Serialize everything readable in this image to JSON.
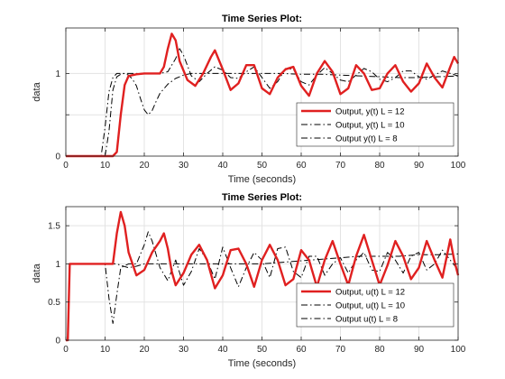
{
  "chart_data": [
    {
      "type": "line",
      "title": "Time Series Plot:",
      "xlabel": "Time (seconds)",
      "ylabel": "data",
      "xlim": [
        0,
        100
      ],
      "ylim": [
        0,
        1.55
      ],
      "xticks": [
        0,
        10,
        20,
        30,
        40,
        50,
        60,
        70,
        80,
        90,
        100
      ],
      "yticks": [
        0,
        0.5,
        1
      ],
      "ytick_labels": [
        "0",
        "",
        "1"
      ],
      "grid": true,
      "legend_position": "bottom-right",
      "series": [
        {
          "name": "Output, y(t) L = 12",
          "color": "#e02020",
          "style": "solid",
          "x": [
            0,
            12,
            13,
            14,
            15,
            16,
            18,
            20,
            24,
            25,
            26,
            27,
            28,
            29,
            31,
            33,
            35,
            37,
            38,
            40,
            42,
            44,
            46,
            48,
            50,
            52,
            54,
            56,
            58,
            60,
            62,
            64,
            66,
            68,
            70,
            72,
            74,
            76,
            78,
            80,
            82,
            84,
            86,
            88,
            90,
            92,
            94,
            96,
            98,
            99,
            100
          ],
          "y": [
            0,
            0,
            0.05,
            0.5,
            0.86,
            0.97,
            0.99,
            1.0,
            1.0,
            1.08,
            1.3,
            1.48,
            1.4,
            1.15,
            0.92,
            0.85,
            1.0,
            1.2,
            1.28,
            1.05,
            0.8,
            0.88,
            1.1,
            1.1,
            0.82,
            0.75,
            0.95,
            1.05,
            1.08,
            0.85,
            0.73,
            1.0,
            1.15,
            1.02,
            0.75,
            0.82,
            1.1,
            1.0,
            0.8,
            0.82,
            1.0,
            1.1,
            0.9,
            0.78,
            0.88,
            1.12,
            0.95,
            0.83,
            1.08,
            1.2,
            1.12
          ]
        },
        {
          "name": "Output, y(t) L = 10",
          "color": "#000000",
          "style": "dashdot",
          "x": [
            0,
            10,
            11,
            12,
            13,
            14,
            15,
            16,
            18,
            20,
            22,
            24,
            26,
            28,
            29,
            30,
            32,
            34,
            36,
            38,
            40,
            42,
            44,
            46,
            48,
            50,
            52,
            54,
            56,
            58,
            60,
            62,
            64,
            66,
            68,
            70,
            72,
            74,
            76,
            78,
            80,
            82,
            84,
            86,
            88,
            90,
            92,
            94,
            96,
            98,
            100
          ],
          "y": [
            0,
            0,
            0.3,
            0.8,
            0.96,
            0.99,
            1.0,
            1.0,
            1.0,
            1.0,
            1.0,
            1.0,
            1.02,
            1.18,
            1.3,
            1.22,
            0.97,
            0.9,
            1.0,
            1.08,
            1.04,
            0.95,
            0.94,
            1.02,
            1.08,
            0.95,
            0.82,
            0.9,
            1.06,
            1.05,
            0.9,
            0.86,
            0.98,
            1.07,
            1.0,
            0.92,
            0.9,
            0.98,
            1.06,
            1.02,
            0.93,
            0.9,
            0.95,
            1.03,
            1.03,
            0.96,
            0.93,
            0.98,
            1.03,
            1.0,
            0.97
          ]
        },
        {
          "name": "Output y(t) L = 8",
          "color": "#000000",
          "style": "dashdot",
          "x": [
            0,
            9,
            10,
            11,
            12,
            13,
            14,
            15,
            16,
            17,
            18,
            19,
            20,
            21,
            22,
            23,
            24,
            26,
            28,
            30,
            32,
            34,
            36,
            40,
            45,
            50,
            55,
            60,
            65,
            70,
            75,
            80,
            85,
            90,
            95,
            100
          ],
          "y": [
            0,
            0,
            0.35,
            0.78,
            0.95,
            1.0,
            1.0,
            1.0,
            0.98,
            0.93,
            0.85,
            0.7,
            0.56,
            0.5,
            0.55,
            0.66,
            0.76,
            0.87,
            0.94,
            0.98,
            1.0,
            1.0,
            1.0,
            1.0,
            1.0,
            1.0,
            1.0,
            0.99,
            0.99,
            0.98,
            0.97,
            0.96,
            0.95,
            0.95,
            0.96,
            0.97
          ]
        }
      ]
    },
    {
      "type": "line",
      "title": "Time Series Plot:",
      "xlabel": "Time (seconds)",
      "ylabel": "data",
      "xlim": [
        0,
        100
      ],
      "ylim": [
        0,
        1.75
      ],
      "xticks": [
        0,
        10,
        20,
        30,
        40,
        50,
        60,
        70,
        80,
        90,
        100
      ],
      "yticks": [
        0,
        0.5,
        1,
        1.5
      ],
      "ytick_labels": [
        "0",
        "0.5",
        "1",
        "1.5"
      ],
      "grid": true,
      "legend_position": "bottom-right",
      "series": [
        {
          "name": "Output, u(t) L = 12",
          "color": "#e02020",
          "style": "solid",
          "x": [
            0,
            0.5,
            1,
            11,
            12,
            13,
            14,
            15,
            16,
            18,
            20,
            22,
            24,
            25,
            26,
            27,
            28,
            30,
            32,
            34,
            36,
            38,
            40,
            42,
            44,
            46,
            48,
            50,
            52,
            54,
            56,
            58,
            60,
            62,
            64,
            66,
            68,
            70,
            72,
            74,
            76,
            78,
            80,
            82,
            84,
            86,
            88,
            90,
            92,
            94,
            96,
            98,
            99,
            100
          ],
          "y": [
            0,
            0,
            1.0,
            1.0,
            1.0,
            1.4,
            1.68,
            1.5,
            1.15,
            0.85,
            0.92,
            1.15,
            1.3,
            1.4,
            1.2,
            0.9,
            0.72,
            0.88,
            1.12,
            1.25,
            1.05,
            0.68,
            0.85,
            1.18,
            1.2,
            1.0,
            0.7,
            1.05,
            1.25,
            1.05,
            0.72,
            0.8,
            1.18,
            1.05,
            0.7,
            1.05,
            1.3,
            1.0,
            0.72,
            1.1,
            1.38,
            1.05,
            0.72,
            0.98,
            1.3,
            1.1,
            0.8,
            0.95,
            1.3,
            1.05,
            0.82,
            1.32,
            1.05,
            0.85
          ]
        },
        {
          "name": "Output, u(t) L = 10",
          "color": "#000000",
          "style": "dashdot",
          "x": [
            0,
            0.5,
            1,
            10,
            11,
            12,
            13,
            14,
            16,
            18,
            20,
            21,
            22,
            24,
            26,
            28,
            30,
            32,
            34,
            36,
            38,
            40,
            42,
            44,
            46,
            48,
            50,
            52,
            54,
            56,
            58,
            60,
            62,
            64,
            66,
            68,
            70,
            72,
            74,
            76,
            78,
            80,
            82,
            84,
            86,
            88,
            90,
            92,
            94,
            96,
            98,
            100
          ],
          "y": [
            0,
            0,
            1.0,
            1.0,
            0.55,
            0.22,
            0.6,
            0.95,
            1.0,
            1.0,
            1.25,
            1.42,
            1.3,
            0.95,
            0.78,
            1.05,
            0.72,
            0.9,
            1.2,
            1.05,
            0.8,
            1.22,
            0.95,
            0.7,
            0.95,
            1.15,
            1.05,
            0.82,
            1.2,
            1.22,
            0.9,
            0.82,
            1.1,
            1.1,
            0.85,
            1.0,
            1.08,
            0.88,
            1.05,
            1.15,
            0.92,
            0.9,
            1.15,
            1.05,
            0.88,
            1.1,
            1.15,
            0.92,
            1.0,
            1.18,
            1.05,
            0.92
          ]
        },
        {
          "name": "Output u(t) L = 8",
          "color": "#000000",
          "style": "dashdot",
          "x": [
            0,
            0.5,
            1,
            12,
            13,
            14,
            16,
            18,
            20,
            24,
            30,
            40,
            50,
            55,
            60,
            65,
            70,
            75,
            80,
            85,
            90,
            95,
            100
          ],
          "y": [
            0,
            0,
            1.0,
            1.0,
            1.0,
            0.98,
            0.95,
            0.97,
            1.0,
            1.0,
            1.0,
            1.0,
            1.0,
            1.02,
            1.04,
            1.06,
            1.08,
            1.1,
            1.1,
            1.1,
            1.12,
            1.12,
            1.13
          ]
        }
      ]
    }
  ]
}
